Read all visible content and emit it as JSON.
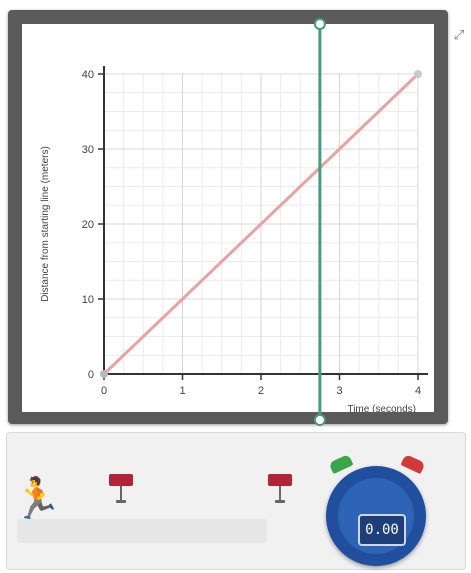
{
  "chart_data": {
    "type": "line",
    "title": "",
    "xlabel": "Time (seconds)",
    "ylabel": "Distance from starting line (meters)",
    "xlim": [
      0,
      4
    ],
    "ylim": [
      0,
      40
    ],
    "x_ticks": [
      "0",
      "1",
      "2",
      "3",
      "4"
    ],
    "y_ticks": [
      "10",
      "20",
      "30",
      "40"
    ],
    "origin_label": "0",
    "grid": true,
    "series": [
      {
        "x": [
          0,
          4
        ],
        "y": [
          0,
          40
        ],
        "color": "#e8a2a2"
      }
    ],
    "cursor_x": 2.75,
    "cursor_color": "#4a9a82"
  },
  "controls": {
    "stopwatch_readout": "0.00",
    "start_color": "#3aa54a",
    "stop_color": "#d23a3a"
  }
}
